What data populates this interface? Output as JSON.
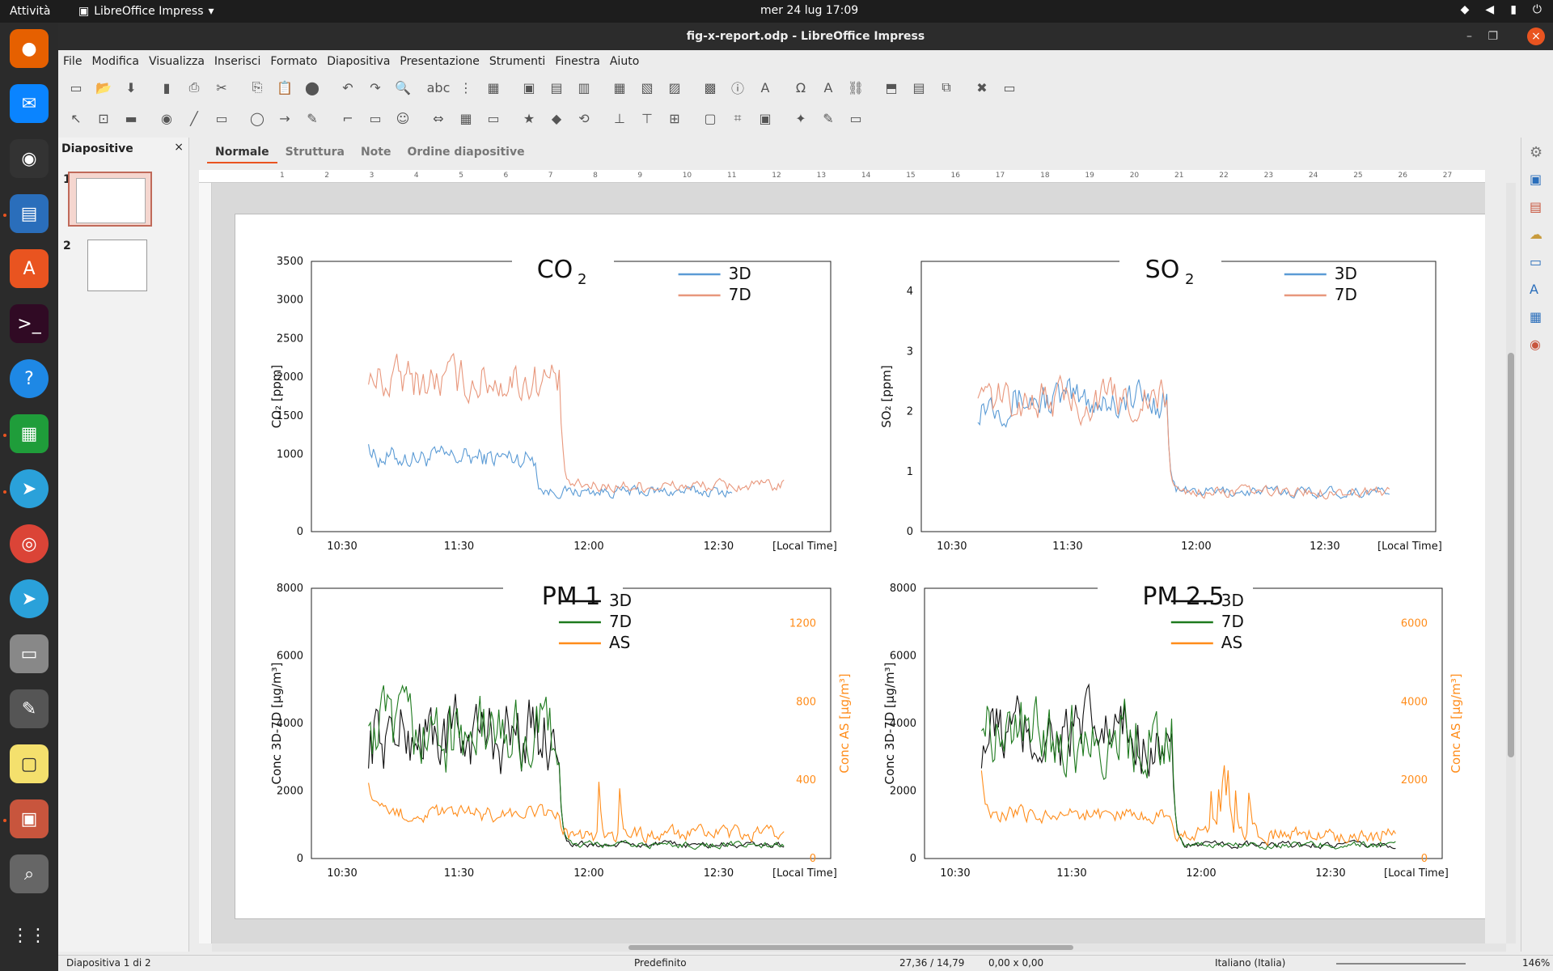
{
  "topbar": {
    "activities": "Attività",
    "app_name": "LibreOffice Impress",
    "clock": "mer 24 lug  17:09"
  },
  "window": {
    "title": "fig-x-report.odp - LibreOffice Impress"
  },
  "menu": [
    "File",
    "Modifica",
    "Visualizza",
    "Inserisci",
    "Formato",
    "Diapositiva",
    "Presentazione",
    "Strumenti",
    "Finestra",
    "Aiuto"
  ],
  "sidepanel": {
    "title": "Diapositive",
    "slides": [
      "1",
      "2"
    ]
  },
  "view_tabs": [
    "Normale",
    "Struttura",
    "Note",
    "Ordine diapositive"
  ],
  "ruler_h": [
    "1",
    "2",
    "3",
    "4",
    "5",
    "6",
    "7",
    "8",
    "9",
    "10",
    "11",
    "12",
    "13",
    "14",
    "15",
    "16",
    "17",
    "18",
    "19",
    "20",
    "21",
    "22",
    "23",
    "24",
    "25",
    "26",
    "27"
  ],
  "status": {
    "slide": "Diapositiva 1 di 2",
    "layout": "Predefinito",
    "position": "27,36 / 14,79",
    "size": "0,00 x 0,00",
    "language": "Italiano (Italia)",
    "zoom": "146%"
  },
  "colors": {
    "blue": "#5b9bd5",
    "salmon": "#e8977c",
    "black": "#111111",
    "green": "#1e7a1e",
    "orange": "#ff8c1a"
  },
  "chart_data": [
    {
      "type": "line",
      "title": "CO₂",
      "ylabel": "CO₂ [ppm]",
      "x_unit": "[Local Time]",
      "xticks": [
        "10:30",
        "11:30",
        "12:00",
        "12:30"
      ],
      "yticks": [
        "0",
        "1000",
        "1500",
        "2000",
        "2500",
        "3000",
        "3500"
      ],
      "ylim": [
        0,
        3500
      ],
      "series": [
        {
          "name": "3D",
          "color": "#5b9bd5"
        },
        {
          "name": "7D",
          "color": "#e8977c"
        }
      ]
    },
    {
      "type": "line",
      "title": "SO₂",
      "ylabel": "SO₂ [ppm]",
      "x_unit": "[Local Time]",
      "xticks": [
        "10:30",
        "11:30",
        "12:00",
        "12:30"
      ],
      "yticks": [
        "0",
        "1",
        "2",
        "3",
        "4"
      ],
      "ylim": [
        0,
        4.5
      ],
      "series": [
        {
          "name": "3D",
          "color": "#5b9bd5"
        },
        {
          "name": "7D",
          "color": "#e8977c"
        }
      ]
    },
    {
      "type": "line",
      "title": "PM 1",
      "ylabel": "Conc 3D-7D [µg/m³]",
      "y2label": "Conc AS [µg/m³]",
      "x_unit": "[Local Time]",
      "xticks": [
        "10:30",
        "11:30",
        "12:00",
        "12:30"
      ],
      "yticks": [
        "0",
        "2000",
        "4000",
        "6000",
        "8000"
      ],
      "y2ticks": [
        "0",
        "400",
        "800",
        "1200"
      ],
      "series": [
        {
          "name": "3D",
          "color": "#111111"
        },
        {
          "name": "7D",
          "color": "#1e7a1e"
        },
        {
          "name": "AS",
          "color": "#ff8c1a"
        }
      ]
    },
    {
      "type": "line",
      "title": "PM 2.5",
      "ylabel": "Conc 3D-7D [µg/m³]",
      "y2label": "Conc AS [µg/m³]",
      "x_unit": "[Local Time]",
      "xticks": [
        "10:30",
        "11:30",
        "12:00",
        "12:30"
      ],
      "yticks": [
        "0",
        "2000",
        "4000",
        "6000",
        "8000"
      ],
      "y2ticks": [
        "0",
        "2000",
        "4000",
        "6000"
      ],
      "series": [
        {
          "name": "3D",
          "color": "#111111"
        },
        {
          "name": "7D",
          "color": "#1e7a1e"
        },
        {
          "name": "AS",
          "color": "#ff8c1a"
        }
      ]
    }
  ]
}
